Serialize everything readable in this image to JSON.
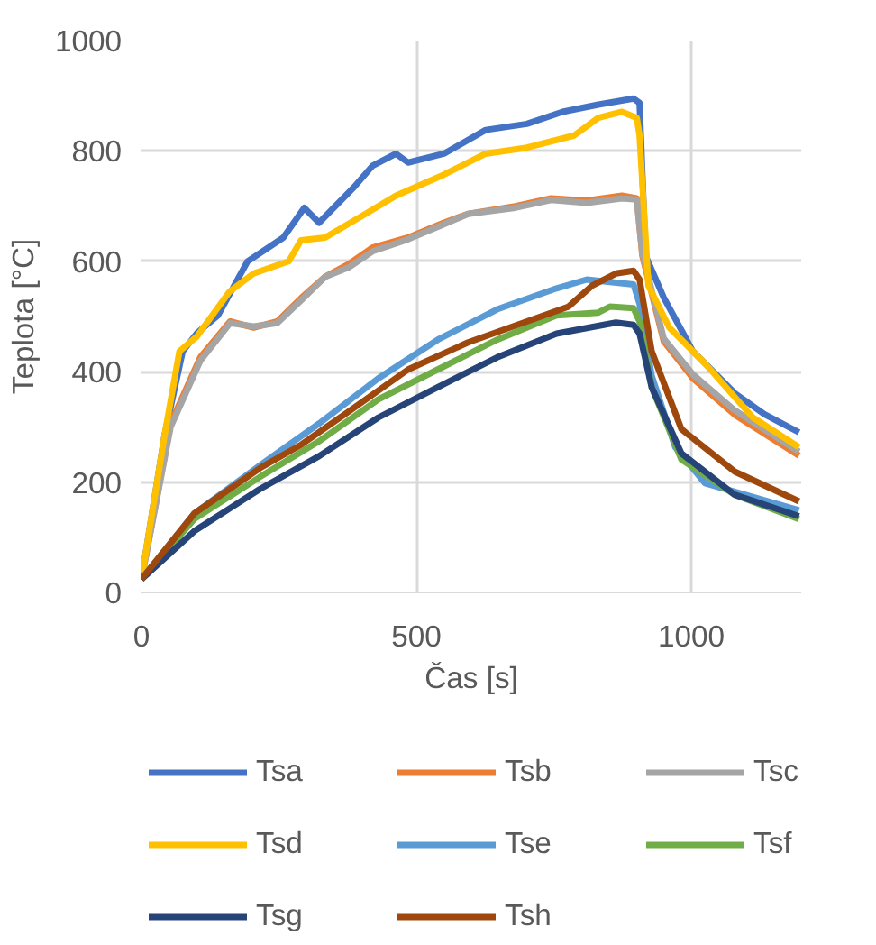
{
  "chart_data": {
    "type": "line",
    "xlabel": "Čas [s]",
    "ylabel": "Teplota [°C]",
    "xlim": [
      0,
      1200
    ],
    "xticks": [
      0,
      500,
      1000
    ],
    "ylim": [
      0,
      1000
    ],
    "yticks": [
      0,
      200,
      400,
      600,
      800,
      1000
    ],
    "grid": true,
    "legend": "bottom",
    "marker": "none",
    "line_style": "solid",
    "series": [
      {
        "name": "Tsa",
        "color": "#4472c4",
        "x": [
          0,
          42,
          75,
          101,
          139,
          193,
          258,
          296,
          323,
          387,
          420,
          463,
          485,
          550,
          626,
          701,
          766,
          831,
          895,
          906,
          917,
          950,
          1003,
          1079,
          1133,
          1196
        ],
        "values": [
          24,
          285,
          437,
          470,
          502,
          600,
          643,
          697,
          670,
          735,
          773,
          795,
          779,
          795,
          838,
          849,
          871,
          884,
          895,
          887,
          610,
          534,
          437,
          361,
          323,
          290
        ]
      },
      {
        "name": "Tsb",
        "color": "#ed7d31",
        "x": [
          0,
          53,
          107,
          161,
          204,
          247,
          291,
          334,
          377,
          420,
          485,
          550,
          594,
          680,
          745,
          810,
          874,
          901,
          911,
          950,
          1003,
          1079,
          1196
        ],
        "values": [
          24,
          306,
          426,
          491,
          480,
          491,
          534,
          572,
          595,
          625,
          643,
          670,
          686,
          700,
          714,
          710,
          719,
          714,
          610,
          455,
          388,
          322,
          248
        ]
      },
      {
        "name": "Tsc",
        "color": "#a5a5a5",
        "x": [
          0,
          53,
          107,
          161,
          204,
          247,
          291,
          334,
          377,
          420,
          485,
          550,
          594,
          680,
          745,
          810,
          874,
          901,
          911,
          950,
          1003,
          1079,
          1196
        ],
        "values": [
          24,
          300,
          420,
          488,
          482,
          488,
          530,
          572,
          589,
          618,
          640,
          667,
          686,
          697,
          711,
          706,
          714,
          712,
          615,
          460,
          395,
          330,
          255
        ]
      },
      {
        "name": "Tsd",
        "color": "#ffc000",
        "x": [
          0,
          42,
          69,
          101,
          160,
          204,
          268,
          290,
          334,
          399,
          463,
          550,
          626,
          701,
          787,
          831,
          874,
          901,
          906,
          922,
          960,
          1025,
          1112,
          1196
        ],
        "values": [
          24,
          285,
          437,
          464,
          545,
          578,
          600,
          638,
          643,
          681,
          719,
          757,
          795,
          806,
          828,
          860,
          871,
          860,
          828,
          556,
          480,
          415,
          317,
          263
        ]
      },
      {
        "name": "Tse",
        "color": "#5b9bd5",
        "x": [
          0,
          96,
          215,
          323,
          431,
          539,
          647,
          755,
          810,
          895,
          906,
          928,
          971,
          1025,
          1196
        ],
        "values": [
          24,
          143,
          230,
          306,
          388,
          458,
          513,
          551,
          567,
          558,
          523,
          393,
          263,
          198,
          149
        ]
      },
      {
        "name": "Tsf",
        "color": "#70ad47",
        "x": [
          0,
          96,
          215,
          323,
          431,
          539,
          647,
          755,
          831,
          852,
          895,
          906,
          928,
          982,
          1079,
          1196
        ],
        "values": [
          24,
          133,
          209,
          274,
          350,
          404,
          458,
          502,
          507,
          518,
          515,
          491,
          372,
          241,
          177,
          133
        ]
      },
      {
        "name": "Tsg",
        "color": "#264478",
        "x": [
          0,
          96,
          215,
          323,
          431,
          539,
          647,
          755,
          863,
          895,
          906,
          928,
          982,
          1079,
          1196
        ],
        "values": [
          24,
          111,
          187,
          247,
          317,
          372,
          426,
          469,
          489,
          485,
          469,
          372,
          252,
          177,
          138
        ]
      },
      {
        "name": "Tsh",
        "color": "#9e480e",
        "x": [
          0,
          96,
          215,
          291,
          377,
          485,
          594,
          701,
          777,
          820,
          863,
          895,
          906,
          928,
          982,
          1079,
          1196
        ],
        "values": [
          24,
          143,
          225,
          268,
          328,
          404,
          453,
          491,
          518,
          556,
          578,
          583,
          567,
          437,
          296,
          219,
          165
        ]
      }
    ]
  }
}
